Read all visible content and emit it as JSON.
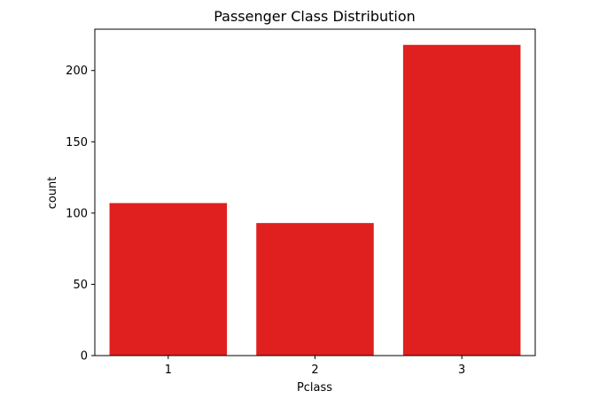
{
  "chart_data": {
    "type": "bar",
    "title": "Passenger Class Distribution",
    "xlabel": "Pclass",
    "ylabel": "count",
    "categories": [
      "1",
      "2",
      "3"
    ],
    "values": [
      107,
      93,
      218
    ],
    "ylim": [
      0,
      229
    ],
    "yticks": [
      0,
      50,
      100,
      150,
      200
    ],
    "bar_color": "#e01f1f",
    "grid": false,
    "legend": false
  }
}
